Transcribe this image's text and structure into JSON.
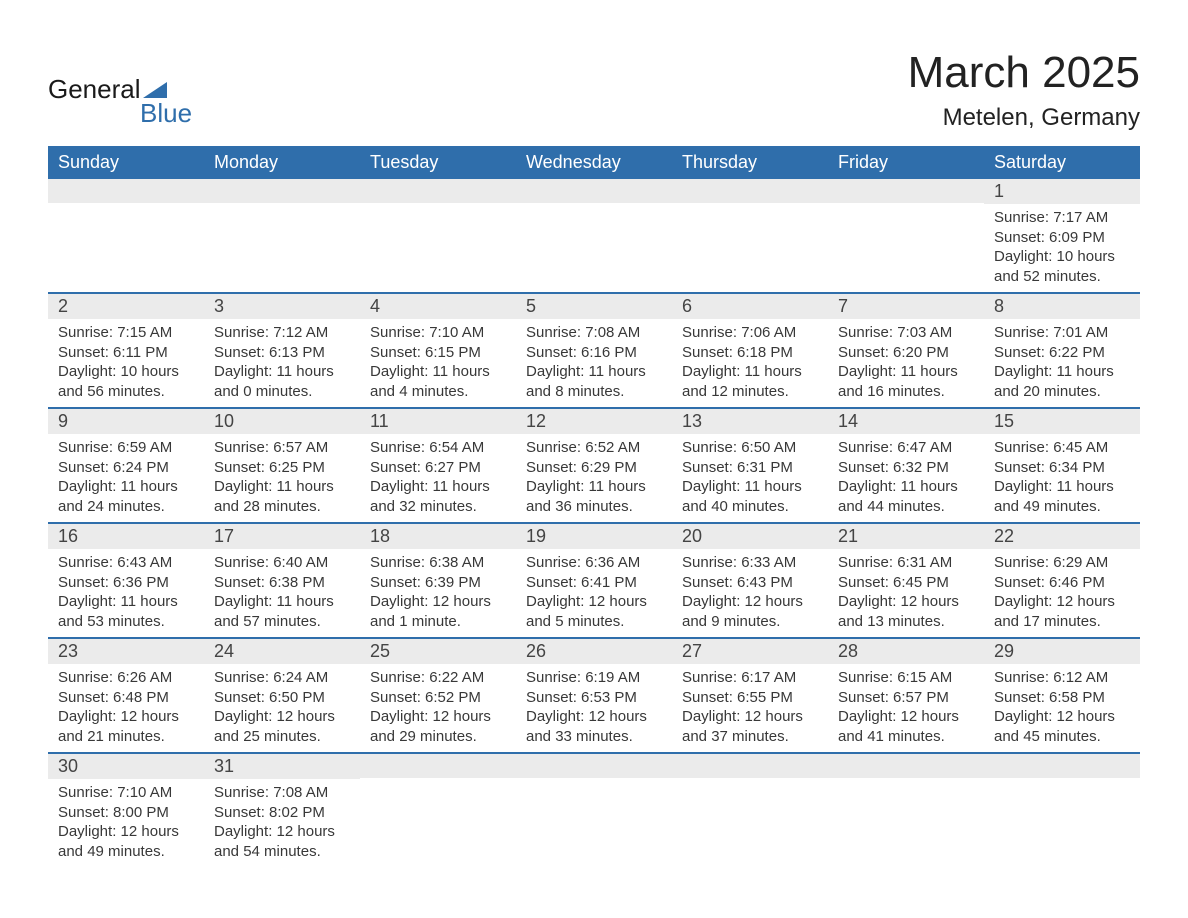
{
  "logo": {
    "text1": "General",
    "text2": "Blue"
  },
  "title": "March 2025",
  "location": "Metelen, Germany",
  "colors": {
    "header_bg": "#2f6eab",
    "header_text": "#ffffff",
    "daynum_bg": "#ebebeb",
    "week_border": "#2f6eab",
    "body_text": "#383838",
    "page_bg": "#ffffff"
  },
  "fonts": {
    "title_size_pt": 33,
    "location_size_pt": 18,
    "header_size_pt": 14,
    "daynum_size_pt": 14,
    "body_size_pt": 11
  },
  "layout": {
    "columns": 7,
    "rows": 6
  },
  "weekdays": [
    "Sunday",
    "Monday",
    "Tuesday",
    "Wednesday",
    "Thursday",
    "Friday",
    "Saturday"
  ],
  "weeks": [
    [
      {
        "n": "",
        "sr": "",
        "ss": "",
        "dl": ""
      },
      {
        "n": "",
        "sr": "",
        "ss": "",
        "dl": ""
      },
      {
        "n": "",
        "sr": "",
        "ss": "",
        "dl": ""
      },
      {
        "n": "",
        "sr": "",
        "ss": "",
        "dl": ""
      },
      {
        "n": "",
        "sr": "",
        "ss": "",
        "dl": ""
      },
      {
        "n": "",
        "sr": "",
        "ss": "",
        "dl": ""
      },
      {
        "n": "1",
        "sr": "Sunrise: 7:17 AM",
        "ss": "Sunset: 6:09 PM",
        "dl": "Daylight: 10 hours and 52 minutes."
      }
    ],
    [
      {
        "n": "2",
        "sr": "Sunrise: 7:15 AM",
        "ss": "Sunset: 6:11 PM",
        "dl": "Daylight: 10 hours and 56 minutes."
      },
      {
        "n": "3",
        "sr": "Sunrise: 7:12 AM",
        "ss": "Sunset: 6:13 PM",
        "dl": "Daylight: 11 hours and 0 minutes."
      },
      {
        "n": "4",
        "sr": "Sunrise: 7:10 AM",
        "ss": "Sunset: 6:15 PM",
        "dl": "Daylight: 11 hours and 4 minutes."
      },
      {
        "n": "5",
        "sr": "Sunrise: 7:08 AM",
        "ss": "Sunset: 6:16 PM",
        "dl": "Daylight: 11 hours and 8 minutes."
      },
      {
        "n": "6",
        "sr": "Sunrise: 7:06 AM",
        "ss": "Sunset: 6:18 PM",
        "dl": "Daylight: 11 hours and 12 minutes."
      },
      {
        "n": "7",
        "sr": "Sunrise: 7:03 AM",
        "ss": "Sunset: 6:20 PM",
        "dl": "Daylight: 11 hours and 16 minutes."
      },
      {
        "n": "8",
        "sr": "Sunrise: 7:01 AM",
        "ss": "Sunset: 6:22 PM",
        "dl": "Daylight: 11 hours and 20 minutes."
      }
    ],
    [
      {
        "n": "9",
        "sr": "Sunrise: 6:59 AM",
        "ss": "Sunset: 6:24 PM",
        "dl": "Daylight: 11 hours and 24 minutes."
      },
      {
        "n": "10",
        "sr": "Sunrise: 6:57 AM",
        "ss": "Sunset: 6:25 PM",
        "dl": "Daylight: 11 hours and 28 minutes."
      },
      {
        "n": "11",
        "sr": "Sunrise: 6:54 AM",
        "ss": "Sunset: 6:27 PM",
        "dl": "Daylight: 11 hours and 32 minutes."
      },
      {
        "n": "12",
        "sr": "Sunrise: 6:52 AM",
        "ss": "Sunset: 6:29 PM",
        "dl": "Daylight: 11 hours and 36 minutes."
      },
      {
        "n": "13",
        "sr": "Sunrise: 6:50 AM",
        "ss": "Sunset: 6:31 PM",
        "dl": "Daylight: 11 hours and 40 minutes."
      },
      {
        "n": "14",
        "sr": "Sunrise: 6:47 AM",
        "ss": "Sunset: 6:32 PM",
        "dl": "Daylight: 11 hours and 44 minutes."
      },
      {
        "n": "15",
        "sr": "Sunrise: 6:45 AM",
        "ss": "Sunset: 6:34 PM",
        "dl": "Daylight: 11 hours and 49 minutes."
      }
    ],
    [
      {
        "n": "16",
        "sr": "Sunrise: 6:43 AM",
        "ss": "Sunset: 6:36 PM",
        "dl": "Daylight: 11 hours and 53 minutes."
      },
      {
        "n": "17",
        "sr": "Sunrise: 6:40 AM",
        "ss": "Sunset: 6:38 PM",
        "dl": "Daylight: 11 hours and 57 minutes."
      },
      {
        "n": "18",
        "sr": "Sunrise: 6:38 AM",
        "ss": "Sunset: 6:39 PM",
        "dl": "Daylight: 12 hours and 1 minute."
      },
      {
        "n": "19",
        "sr": "Sunrise: 6:36 AM",
        "ss": "Sunset: 6:41 PM",
        "dl": "Daylight: 12 hours and 5 minutes."
      },
      {
        "n": "20",
        "sr": "Sunrise: 6:33 AM",
        "ss": "Sunset: 6:43 PM",
        "dl": "Daylight: 12 hours and 9 minutes."
      },
      {
        "n": "21",
        "sr": "Sunrise: 6:31 AM",
        "ss": "Sunset: 6:45 PM",
        "dl": "Daylight: 12 hours and 13 minutes."
      },
      {
        "n": "22",
        "sr": "Sunrise: 6:29 AM",
        "ss": "Sunset: 6:46 PM",
        "dl": "Daylight: 12 hours and 17 minutes."
      }
    ],
    [
      {
        "n": "23",
        "sr": "Sunrise: 6:26 AM",
        "ss": "Sunset: 6:48 PM",
        "dl": "Daylight: 12 hours and 21 minutes."
      },
      {
        "n": "24",
        "sr": "Sunrise: 6:24 AM",
        "ss": "Sunset: 6:50 PM",
        "dl": "Daylight: 12 hours and 25 minutes."
      },
      {
        "n": "25",
        "sr": "Sunrise: 6:22 AM",
        "ss": "Sunset: 6:52 PM",
        "dl": "Daylight: 12 hours and 29 minutes."
      },
      {
        "n": "26",
        "sr": "Sunrise: 6:19 AM",
        "ss": "Sunset: 6:53 PM",
        "dl": "Daylight: 12 hours and 33 minutes."
      },
      {
        "n": "27",
        "sr": "Sunrise: 6:17 AM",
        "ss": "Sunset: 6:55 PM",
        "dl": "Daylight: 12 hours and 37 minutes."
      },
      {
        "n": "28",
        "sr": "Sunrise: 6:15 AM",
        "ss": "Sunset: 6:57 PM",
        "dl": "Daylight: 12 hours and 41 minutes."
      },
      {
        "n": "29",
        "sr": "Sunrise: 6:12 AM",
        "ss": "Sunset: 6:58 PM",
        "dl": "Daylight: 12 hours and 45 minutes."
      }
    ],
    [
      {
        "n": "30",
        "sr": "Sunrise: 7:10 AM",
        "ss": "Sunset: 8:00 PM",
        "dl": "Daylight: 12 hours and 49 minutes."
      },
      {
        "n": "31",
        "sr": "Sunrise: 7:08 AM",
        "ss": "Sunset: 8:02 PM",
        "dl": "Daylight: 12 hours and 54 minutes."
      },
      {
        "n": "",
        "sr": "",
        "ss": "",
        "dl": ""
      },
      {
        "n": "",
        "sr": "",
        "ss": "",
        "dl": ""
      },
      {
        "n": "",
        "sr": "",
        "ss": "",
        "dl": ""
      },
      {
        "n": "",
        "sr": "",
        "ss": "",
        "dl": ""
      },
      {
        "n": "",
        "sr": "",
        "ss": "",
        "dl": ""
      }
    ]
  ]
}
